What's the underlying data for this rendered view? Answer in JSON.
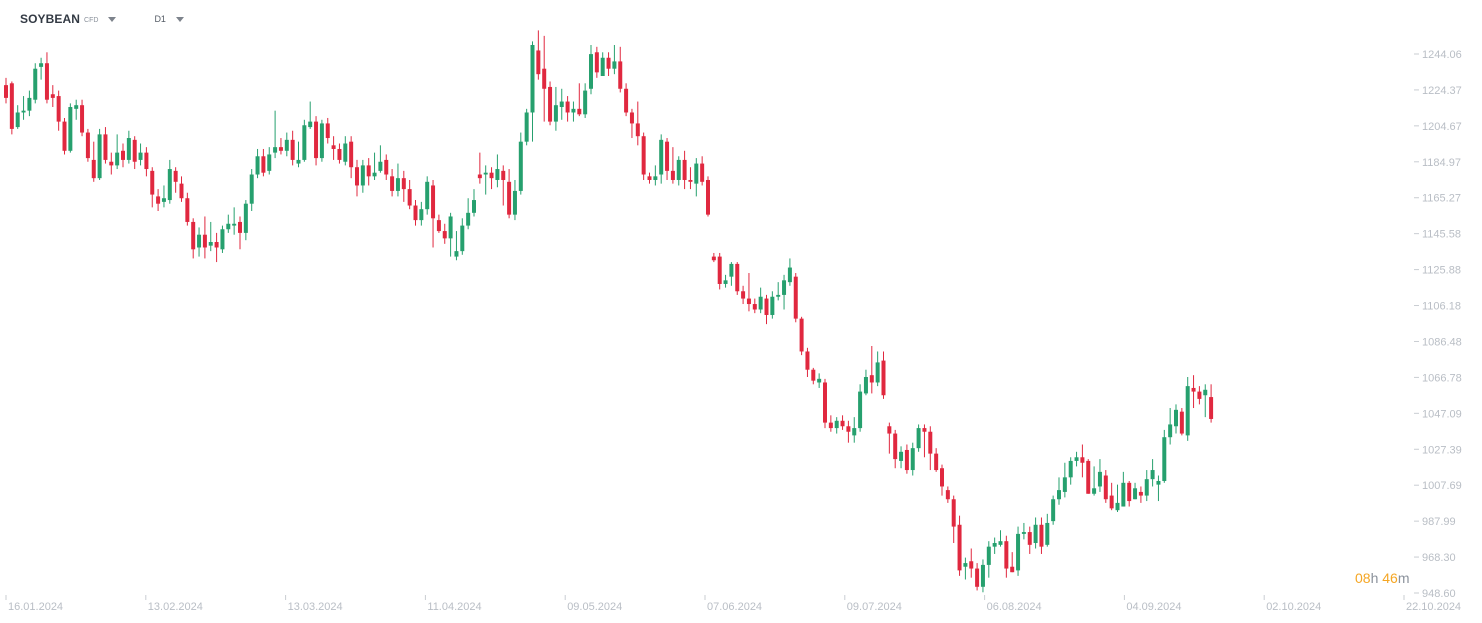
{
  "toolbar": {
    "symbol": "SOYBEAN",
    "badge": "CFD",
    "timeframe": "D1"
  },
  "countdown": {
    "hours": "08",
    "h_unit": "h",
    "minutes": "46",
    "m_unit": "m"
  },
  "colors": {
    "up": "#26a06e",
    "down": "#e0283f",
    "axis_text": "#b9bec5",
    "tick": "#c9cdd2"
  },
  "chart_data": {
    "type": "candlestick",
    "title": "",
    "xlabel": "",
    "ylabel": "",
    "ylim": [
      948.6,
      1254.0
    ],
    "y_ticks": [
      "1244.06",
      "1224.37",
      "1204.67",
      "1184.97",
      "1165.27",
      "1145.58",
      "1125.88",
      "1106.18",
      "1086.48",
      "1066.78",
      "1047.09",
      "1027.39",
      "1007.69",
      "987.99",
      "968.30",
      "948.60"
    ],
    "x_ticks": [
      "16.01.2024",
      "13.02.2024",
      "13.03.2024",
      "11.04.2024",
      "09.05.2024",
      "07.06.2024",
      "09.07.2024",
      "06.08.2024",
      "04.09.2024",
      "02.10.2024",
      "22.10.2024"
    ],
    "grid": false,
    "candles": [
      [
        1227,
        1220,
        1231,
        1217
      ],
      [
        1228,
        1203,
        1229,
        1200
      ],
      [
        1204,
        1212,
        1216,
        1203
      ],
      [
        1212,
        1213,
        1221,
        1208
      ],
      [
        1213,
        1220,
        1224,
        1210
      ],
      [
        1219,
        1236,
        1239,
        1217
      ],
      [
        1237,
        1239,
        1242,
        1230
      ],
      [
        1239,
        1219,
        1245,
        1217
      ],
      [
        1222,
        1220,
        1227,
        1215
      ],
      [
        1221,
        1207,
        1224,
        1202
      ],
      [
        1207,
        1191,
        1209,
        1189
      ],
      [
        1191,
        1215,
        1217,
        1190
      ],
      [
        1214,
        1216,
        1219,
        1208
      ],
      [
        1216,
        1201,
        1219,
        1199
      ],
      [
        1201,
        1187,
        1203,
        1185
      ],
      [
        1186,
        1176,
        1196,
        1174
      ],
      [
        1176,
        1200,
        1203,
        1175
      ],
      [
        1200,
        1186,
        1204,
        1184
      ],
      [
        1185,
        1183,
        1190,
        1178
      ],
      [
        1183,
        1190,
        1200,
        1181
      ],
      [
        1191,
        1186,
        1195,
        1182
      ],
      [
        1186,
        1198,
        1202,
        1184
      ],
      [
        1197,
        1185,
        1199,
        1181
      ],
      [
        1186,
        1190,
        1195,
        1183
      ],
      [
        1190,
        1181,
        1193,
        1177
      ],
      [
        1180,
        1167,
        1182,
        1160
      ],
      [
        1166,
        1162,
        1170,
        1158
      ],
      [
        1163,
        1165,
        1172,
        1160
      ],
      [
        1164,
        1181,
        1186,
        1162
      ],
      [
        1180,
        1174,
        1182,
        1168
      ],
      [
        1173,
        1165,
        1177,
        1163
      ],
      [
        1165,
        1152,
        1168,
        1150
      ],
      [
        1152,
        1137,
        1154,
        1132
      ],
      [
        1138,
        1145,
        1149,
        1133
      ],
      [
        1145,
        1138,
        1155,
        1132
      ],
      [
        1139,
        1141,
        1152,
        1136
      ],
      [
        1141,
        1138,
        1146,
        1130
      ],
      [
        1137,
        1148,
        1150,
        1135
      ],
      [
        1148,
        1151,
        1156,
        1146
      ],
      [
        1150,
        1151,
        1160,
        1145
      ],
      [
        1152,
        1146,
        1155,
        1137
      ],
      [
        1146,
        1162,
        1164,
        1142
      ],
      [
        1162,
        1178,
        1181,
        1158
      ],
      [
        1178,
        1188,
        1192,
        1176
      ],
      [
        1188,
        1179,
        1192,
        1177
      ],
      [
        1180,
        1189,
        1193,
        1178
      ],
      [
        1190,
        1193,
        1213,
        1187
      ],
      [
        1193,
        1191,
        1198,
        1189
      ],
      [
        1191,
        1197,
        1201,
        1188
      ],
      [
        1197,
        1186,
        1202,
        1183
      ],
      [
        1184,
        1186,
        1196,
        1182
      ],
      [
        1186,
        1205,
        1208,
        1185
      ],
      [
        1204,
        1207,
        1218,
        1203
      ],
      [
        1207,
        1187,
        1210,
        1183
      ],
      [
        1187,
        1206,
        1208,
        1185
      ],
      [
        1206,
        1198,
        1209,
        1195
      ],
      [
        1194,
        1192,
        1199,
        1186
      ],
      [
        1192,
        1186,
        1195,
        1184
      ],
      [
        1185,
        1195,
        1199,
        1183
      ],
      [
        1196,
        1182,
        1199,
        1176
      ],
      [
        1182,
        1172,
        1186,
        1166
      ],
      [
        1172,
        1183,
        1186,
        1168
      ],
      [
        1183,
        1177,
        1187,
        1172
      ],
      [
        1177,
        1179,
        1190,
        1175
      ],
      [
        1180,
        1185,
        1194,
        1179
      ],
      [
        1186,
        1178,
        1189,
        1175
      ],
      [
        1177,
        1169,
        1181,
        1166
      ],
      [
        1169,
        1176,
        1184,
        1166
      ],
      [
        1176,
        1170,
        1180,
        1163
      ],
      [
        1170,
        1161,
        1175,
        1159
      ],
      [
        1161,
        1153,
        1164,
        1150
      ],
      [
        1153,
        1159,
        1163,
        1150
      ],
      [
        1159,
        1174,
        1177,
        1156
      ],
      [
        1172,
        1154,
        1175,
        1138
      ],
      [
        1153,
        1147,
        1156,
        1146
      ],
      [
        1147,
        1143,
        1151,
        1140
      ],
      [
        1143,
        1155,
        1157,
        1133
      ],
      [
        1133,
        1136,
        1147,
        1131
      ],
      [
        1136,
        1150,
        1154,
        1134
      ],
      [
        1150,
        1157,
        1165,
        1148
      ],
      [
        1157,
        1164,
        1170,
        1155
      ],
      [
        1178,
        1176,
        1190,
        1173
      ],
      [
        1178,
        1179,
        1183,
        1167
      ],
      [
        1179,
        1176,
        1182,
        1170
      ],
      [
        1175,
        1181,
        1189,
        1171
      ],
      [
        1180,
        1175,
        1183,
        1161
      ],
      [
        1174,
        1156,
        1181,
        1154
      ],
      [
        1156,
        1169,
        1175,
        1153
      ],
      [
        1169,
        1196,
        1201,
        1167
      ],
      [
        1196,
        1212,
        1214,
        1194
      ],
      [
        1212,
        1249,
        1251,
        1196
      ],
      [
        1246,
        1233,
        1257,
        1230
      ],
      [
        1236,
        1225,
        1254,
        1207
      ],
      [
        1226,
        1207,
        1229,
        1205
      ],
      [
        1207,
        1216,
        1226,
        1202
      ],
      [
        1215,
        1218,
        1225,
        1208
      ],
      [
        1218,
        1212,
        1221,
        1207
      ],
      [
        1212,
        1214,
        1218,
        1207
      ],
      [
        1214,
        1211,
        1228,
        1210
      ],
      [
        1211,
        1224,
        1228,
        1209
      ],
      [
        1225,
        1244,
        1249,
        1222
      ],
      [
        1245,
        1234,
        1248,
        1231
      ],
      [
        1232,
        1242,
        1245,
        1232
      ],
      [
        1242,
        1236,
        1245,
        1232
      ],
      [
        1236,
        1240,
        1249,
        1233
      ],
      [
        1240,
        1225,
        1248,
        1223
      ],
      [
        1225,
        1212,
        1228,
        1210
      ],
      [
        1212,
        1206,
        1214,
        1198
      ],
      [
        1206,
        1199,
        1218,
        1194
      ],
      [
        1199,
        1178,
        1201,
        1175
      ],
      [
        1177,
        1175,
        1179,
        1173
      ],
      [
        1175,
        1177,
        1183,
        1172
      ],
      [
        1178,
        1197,
        1200,
        1173
      ],
      [
        1196,
        1180,
        1198,
        1175
      ],
      [
        1180,
        1175,
        1193,
        1173
      ],
      [
        1175,
        1186,
        1188,
        1172
      ],
      [
        1186,
        1175,
        1191,
        1170
      ],
      [
        1175,
        1174,
        1182,
        1170
      ],
      [
        1173,
        1184,
        1187,
        1166
      ],
      [
        1184,
        1174,
        1188,
        1172
      ],
      [
        1175,
        1156,
        1177,
        1155
      ],
      [
        1133,
        1131,
        1135,
        1130
      ],
      [
        1133,
        1118,
        1135,
        1115
      ],
      [
        1118,
        1120,
        1123,
        1116
      ],
      [
        1122,
        1129,
        1130,
        1117
      ],
      [
        1129,
        1114,
        1130,
        1112
      ],
      [
        1114,
        1110,
        1117,
        1107
      ],
      [
        1110,
        1107,
        1124,
        1103
      ],
      [
        1107,
        1104,
        1110,
        1102
      ],
      [
        1104,
        1111,
        1116,
        1102
      ],
      [
        1110,
        1101,
        1112,
        1096
      ],
      [
        1101,
        1111,
        1114,
        1099
      ],
      [
        1111,
        1112,
        1119,
        1109
      ],
      [
        1112,
        1120,
        1123,
        1104
      ],
      [
        1119,
        1127,
        1132,
        1117
      ],
      [
        1122,
        1099,
        1124,
        1097
      ],
      [
        1099,
        1081,
        1100,
        1079
      ],
      [
        1081,
        1071,
        1083,
        1067
      ],
      [
        1071,
        1065,
        1072,
        1063
      ],
      [
        1064,
        1066,
        1069,
        1061
      ],
      [
        1064,
        1042,
        1066,
        1039
      ],
      [
        1042,
        1039,
        1046,
        1037
      ],
      [
        1039,
        1043,
        1045,
        1036
      ],
      [
        1043,
        1040,
        1046,
        1038
      ],
      [
        1040,
        1037,
        1043,
        1031
      ],
      [
        1035,
        1039,
        1045,
        1031
      ],
      [
        1039,
        1059,
        1063,
        1037
      ],
      [
        1058,
        1067,
        1071,
        1057
      ],
      [
        1068,
        1064,
        1084,
        1058
      ],
      [
        1064,
        1075,
        1081,
        1062
      ],
      [
        1076,
        1057,
        1081,
        1055
      ],
      [
        1040,
        1036,
        1042,
        1025
      ],
      [
        1036,
        1022,
        1038,
        1017
      ],
      [
        1021,
        1026,
        1029,
        1017
      ],
      [
        1027,
        1016,
        1030,
        1014
      ],
      [
        1016,
        1028,
        1031,
        1013
      ],
      [
        1028,
        1039,
        1041,
        1026
      ],
      [
        1039,
        1037,
        1041,
        1023
      ],
      [
        1037,
        1025,
        1040,
        1016
      ],
      [
        1025,
        1016,
        1028,
        1015
      ],
      [
        1017,
        1007,
        1019,
        1002
      ],
      [
        1005,
        1000,
        1007,
        998
      ],
      [
        1000,
        985,
        1002,
        976
      ],
      [
        986,
        961,
        991,
        958
      ],
      [
        963,
        965,
        968,
        956
      ],
      [
        966,
        962,
        973,
        957
      ],
      [
        962,
        952,
        965,
        950
      ],
      [
        952,
        964,
        967,
        949
      ],
      [
        964,
        974,
        977,
        957
      ],
      [
        974,
        976,
        979,
        970
      ],
      [
        975,
        977,
        983,
        974
      ],
      [
        977,
        962,
        980,
        957
      ],
      [
        963,
        960,
        971,
        960
      ],
      [
        961,
        981,
        985,
        958
      ],
      [
        981,
        982,
        987,
        978
      ],
      [
        982,
        975,
        985,
        970
      ],
      [
        976,
        986,
        990,
        973
      ],
      [
        986,
        974,
        990,
        970
      ],
      [
        975,
        987,
        992,
        974
      ],
      [
        988,
        1000,
        1002,
        986
      ],
      [
        1000,
        1005,
        1012,
        997
      ],
      [
        1004,
        1012,
        1020,
        1001
      ],
      [
        1012,
        1021,
        1023,
        1008
      ],
      [
        1021,
        1023,
        1026,
        1018
      ],
      [
        1023,
        1020,
        1030,
        1012
      ],
      [
        1021,
        1003,
        1022,
        1003
      ],
      [
        1003,
        1006,
        1018,
        1002
      ],
      [
        1007,
        1015,
        1022,
        1004
      ],
      [
        1013,
        1000,
        1016,
        998
      ],
      [
        1002,
        995,
        1009,
        994
      ],
      [
        994,
        998,
        1008,
        993
      ],
      [
        996,
        1009,
        1015,
        996
      ],
      [
        1009,
        999,
        1010,
        996
      ],
      [
        1000,
        1006,
        1009,
        1000
      ],
      [
        1004,
        1002,
        1007,
        998
      ],
      [
        1002,
        1011,
        1016,
        999
      ],
      [
        1011,
        1016,
        1022,
        1007
      ],
      [
        1008,
        1010,
        1013,
        999
      ],
      [
        1010,
        1034,
        1038,
        1009
      ],
      [
        1034,
        1041,
        1050,
        1030
      ],
      [
        1040,
        1049,
        1052,
        1036
      ],
      [
        1048,
        1036,
        1050,
        1035
      ],
      [
        1035,
        1062,
        1067,
        1032
      ],
      [
        1061,
        1059,
        1068,
        1050
      ],
      [
        1059,
        1055,
        1062,
        1052
      ],
      [
        1057,
        1060,
        1063,
        1045
      ],
      [
        1056,
        1044,
        1063,
        1042
      ]
    ]
  }
}
